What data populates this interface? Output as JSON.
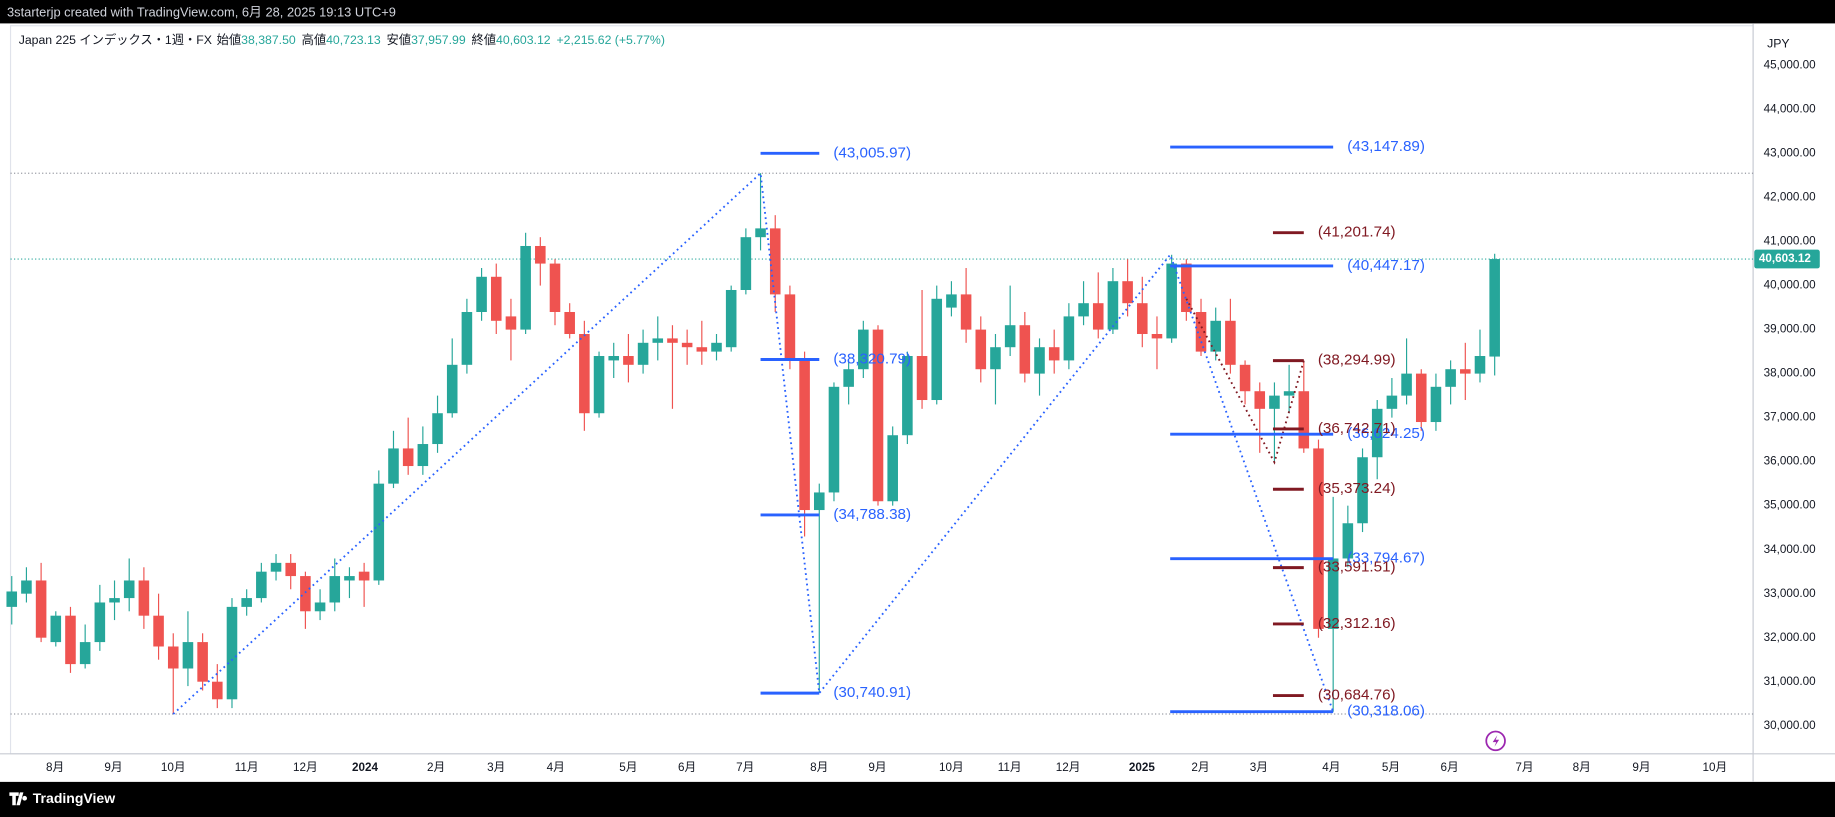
{
  "header": {
    "text": "3starterjp created with TradingView.com, 6月 28, 2025 19:13 UTC+9"
  },
  "footer": {
    "brand": "TradingView"
  },
  "chart_data": {
    "type": "candlestick",
    "symbol": "Japan 225 インデックス・1週・FX",
    "legend": [
      {
        "label": "始値",
        "value": "38,387.50"
      },
      {
        "label": "高値",
        "value": "40,723.13"
      },
      {
        "label": "安値",
        "value": "37,957.99"
      },
      {
        "label": "終値",
        "value": "40,603.12"
      }
    ],
    "change": "+2,215.62 (+5.77%)",
    "currency": "JPY",
    "up_color": "#26a69a",
    "down_color": "#ef5350",
    "open": [
      32700,
      33000,
      33300,
      31900,
      32500,
      31400,
      31900,
      32800,
      32900,
      33300,
      32500,
      31800,
      31300,
      31900,
      31000,
      30600,
      32700,
      32900,
      33500,
      33700,
      33400,
      32600,
      32800,
      33300,
      33500,
      33300,
      35500,
      36300,
      35900,
      36400,
      37100,
      38200,
      39400,
      40200,
      39300,
      39000,
      40900,
      40500,
      39400,
      38900,
      37100,
      38300,
      38400,
      38200,
      38700,
      38800,
      38700,
      38600,
      38500,
      38600,
      39900,
      41100,
      41300,
      39800,
      38300,
      34900,
      35300,
      37700,
      38100,
      39000,
      35100,
      36600,
      38400,
      37400,
      39500,
      39800,
      39000,
      38100,
      38600,
      39100,
      38000,
      38600,
      38300,
      39300,
      39600,
      39000,
      40100,
      39600,
      38900,
      38800,
      40500,
      39400,
      38500,
      39200,
      38200,
      37600,
      37200,
      37500,
      37600,
      36300,
      32200,
      33800,
      34600,
      36100,
      37200,
      37500,
      38000,
      36900,
      37700,
      38100,
      38000,
      38387.5
    ],
    "high": [
      33400,
      33600,
      33700,
      32600,
      32700,
      32300,
      33200,
      33300,
      33800,
      33600,
      33000,
      32100,
      32600,
      32100,
      31400,
      32900,
      33100,
      33700,
      33900,
      33900,
      33500,
      33100,
      33800,
      33600,
      33700,
      35800,
      36700,
      37000,
      36800,
      37500,
      38800,
      39700,
      40400,
      40500,
      39700,
      41200,
      41100,
      40600,
      39600,
      39200,
      38500,
      38700,
      38900,
      39000,
      39300,
      39100,
      39000,
      39200,
      38900,
      40000,
      41300,
      42553,
      41600,
      40000,
      38500,
      35500,
      37800,
      38300,
      39200,
      39100,
      36800,
      38500,
      39900,
      40000,
      40100,
      40400,
      39300,
      38900,
      40000,
      39400,
      38800,
      39000,
      39600,
      40100,
      40300,
      40400,
      40600,
      40200,
      39300,
      40700,
      40600,
      39700,
      39500,
      39700,
      38300,
      37800,
      37800,
      38200,
      38300,
      36500,
      35200,
      35000,
      36300,
      37400,
      37900,
      38800,
      38100,
      38000,
      38300,
      38700,
      39000,
      40723.13
    ],
    "low": [
      32300,
      32800,
      31900,
      31800,
      31200,
      31300,
      31700,
      32400,
      32600,
      32200,
      31500,
      30266,
      30900,
      30800,
      30400,
      30400,
      32500,
      32800,
      33300,
      33100,
      32200,
      32400,
      32600,
      32900,
      32700,
      33200,
      35400,
      35700,
      35700,
      36200,
      37000,
      38000,
      39200,
      38900,
      38300,
      38900,
      40000,
      39100,
      38800,
      36700,
      37000,
      37900,
      37800,
      38000,
      38300,
      37200,
      38200,
      38200,
      38300,
      38500,
      39800,
      40800,
      39400,
      38100,
      34300,
      30740.91,
      35100,
      37300,
      37900,
      35000,
      35000,
      36400,
      37200,
      37300,
      39300,
      38700,
      37800,
      37300,
      38400,
      37800,
      37500,
      38000,
      38100,
      39100,
      38800,
      38900,
      39300,
      38600,
      38100,
      38700,
      39200,
      38400,
      38300,
      38000,
      37300,
      36200,
      36000,
      37100,
      36200,
      32000,
      30318.06,
      33600,
      34400,
      35600,
      37000,
      37300,
      36700,
      36700,
      37300,
      37400,
      37800,
      37957.99
    ],
    "close": [
      33050,
      33300,
      32000,
      32500,
      31400,
      31900,
      32800,
      32900,
      33300,
      32500,
      31800,
      31300,
      31900,
      31000,
      30600,
      32700,
      32900,
      33500,
      33700,
      33400,
      32600,
      32800,
      33400,
      33400,
      33300,
      35500,
      36300,
      35900,
      36400,
      37100,
      38200,
      39400,
      40200,
      39200,
      39000,
      40900,
      40500,
      39400,
      38900,
      37100,
      38400,
      38400,
      38200,
      38700,
      38800,
      38700,
      38600,
      38500,
      38700,
      39900,
      41100,
      41300,
      39800,
      38300,
      34900,
      35300,
      37700,
      38100,
      39000,
      35100,
      36600,
      38400,
      37400,
      39700,
      39800,
      39000,
      38100,
      38600,
      39100,
      38000,
      38600,
      38300,
      39300,
      39600,
      39000,
      40100,
      39600,
      38900,
      38800,
      40500,
      39400,
      38500,
      39200,
      38200,
      37600,
      37200,
      37500,
      37600,
      36300,
      32200,
      33800,
      34600,
      36100,
      37200,
      37500,
      38000,
      36900,
      37700,
      38100,
      38000,
      38400,
      40603.12
    ],
    "xlim": [
      -0.8,
      118.6
    ],
    "xticks": [
      {
        "value": 2.95,
        "label": "8月"
      },
      {
        "value": 6.93,
        "label": "9月"
      },
      {
        "value": 11.0,
        "label": "10月"
      },
      {
        "value": 16.0,
        "label": "11月"
      },
      {
        "value": 20.0,
        "label": "12月"
      },
      {
        "value": 24.06,
        "label": "2024"
      },
      {
        "value": 28.9,
        "label": "2月"
      },
      {
        "value": 33.0,
        "label": "3月"
      },
      {
        "value": 37.05,
        "label": "4月"
      },
      {
        "value": 42.0,
        "label": "5月"
      },
      {
        "value": 46.0,
        "label": "6月"
      },
      {
        "value": 49.96,
        "label": "7月"
      },
      {
        "value": 55.0,
        "label": "8月"
      },
      {
        "value": 58.96,
        "label": "9月"
      },
      {
        "value": 64.0,
        "label": "10月"
      },
      {
        "value": 67.97,
        "label": "11月"
      },
      {
        "value": 71.95,
        "label": "12月"
      },
      {
        "value": 76.97,
        "label": "2025"
      },
      {
        "value": 80.96,
        "label": "2月"
      },
      {
        "value": 84.94,
        "label": "3月"
      },
      {
        "value": 89.88,
        "label": "4月"
      },
      {
        "value": 93.94,
        "label": "5月"
      },
      {
        "value": 97.93,
        "label": "6月"
      },
      {
        "value": 103.03,
        "label": "7月"
      },
      {
        "value": 106.93,
        "label": "8月"
      },
      {
        "value": 111.0,
        "label": "9月"
      },
      {
        "value": 116.0,
        "label": "10月"
      }
    ],
    "ylim": [
      29362,
      45957
    ],
    "yticks": [
      {
        "value": 30000,
        "label": "30,000.00"
      },
      {
        "value": 31000,
        "label": "31,000.00"
      },
      {
        "value": 32000,
        "label": "32,000.00"
      },
      {
        "value": 33000,
        "label": "33,000.00"
      },
      {
        "value": 34000,
        "label": "34,000.00"
      },
      {
        "value": 35000,
        "label": "35,000.00"
      },
      {
        "value": 36000,
        "label": "36,000.00"
      },
      {
        "value": 37000,
        "label": "37,000.00"
      },
      {
        "value": 38000,
        "label": "38,000.00"
      },
      {
        "value": 39000,
        "label": "39,000.00"
      },
      {
        "value": 40000,
        "label": "40,000.00"
      },
      {
        "value": 41000,
        "label": "41,000.00"
      },
      {
        "value": 42000,
        "label": "42,000.00"
      },
      {
        "value": 43000,
        "label": "43,000.00"
      },
      {
        "value": 44000,
        "label": "44,000.00"
      },
      {
        "value": 45000,
        "label": "45,000.00"
      }
    ],
    "grid": false,
    "last_price": {
      "value": 40603.12,
      "label": "40,603.12"
    },
    "price_lines": [
      42553,
      30266
    ],
    "levels": [
      {
        "label": "(43,005.97)",
        "value": 43005.97,
        "from": 51,
        "to": 55,
        "color": "#2962ff"
      },
      {
        "label": "(38,320.79)",
        "value": 38320.79,
        "from": 51,
        "to": 55,
        "color": "#2962ff"
      },
      {
        "label": "(34,788.38)",
        "value": 34788.38,
        "from": 51,
        "to": 55,
        "color": "#2962ff"
      },
      {
        "label": "(30,740.91)",
        "value": 30740.91,
        "from": 51,
        "to": 55,
        "color": "#2962ff"
      },
      {
        "label": "(43,147.89)",
        "value": 43147.89,
        "from": 78.9,
        "to": 90,
        "color": "#2962ff"
      },
      {
        "label": "(40,447.17)",
        "value": 40447.17,
        "from": 78.9,
        "to": 90,
        "color": "#2962ff"
      },
      {
        "label": "(36,624.25)",
        "value": 36624.25,
        "from": 78.9,
        "to": 90,
        "color": "#2962ff"
      },
      {
        "label": "(33,794.67)",
        "value": 33794.67,
        "from": 78.9,
        "to": 90,
        "color": "#2962ff"
      },
      {
        "label": "(30,318.06)",
        "value": 30318.06,
        "from": 78.9,
        "to": 90,
        "color": "#2962ff"
      },
      {
        "label": "(41,201.74)",
        "value": 41201.74,
        "from": 85.9,
        "to": 88,
        "color": "#801922"
      },
      {
        "label": "(38,294.99)",
        "value": 38294.99,
        "from": 85.9,
        "to": 88,
        "color": "#801922"
      },
      {
        "label": "(36,742.71)",
        "value": 36742.71,
        "from": 85.9,
        "to": 88,
        "color": "#801922"
      },
      {
        "label": "(35,373.24)",
        "value": 35373.24,
        "from": 85.9,
        "to": 88,
        "color": "#801922"
      },
      {
        "label": "(33,591.51)",
        "value": 33591.51,
        "from": 85.9,
        "to": 88,
        "color": "#801922"
      },
      {
        "label": "(32,312.16)",
        "value": 32312.16,
        "from": 85.9,
        "to": 88,
        "color": "#801922"
      },
      {
        "label": "(30,684.76)",
        "value": 30684.76,
        "from": 85.9,
        "to": 88,
        "color": "#801922"
      }
    ],
    "paths": [
      {
        "color": "#2962ff",
        "x": [
          11,
          51,
          55,
          78.9,
          90
        ],
        "y": [
          30266,
          42553,
          30740.91,
          40700,
          30318.06
        ]
      },
      {
        "color": "#801922",
        "x": [
          80,
          86,
          88
        ],
        "y": [
          39700,
          35984,
          38294.99
        ]
      }
    ]
  }
}
